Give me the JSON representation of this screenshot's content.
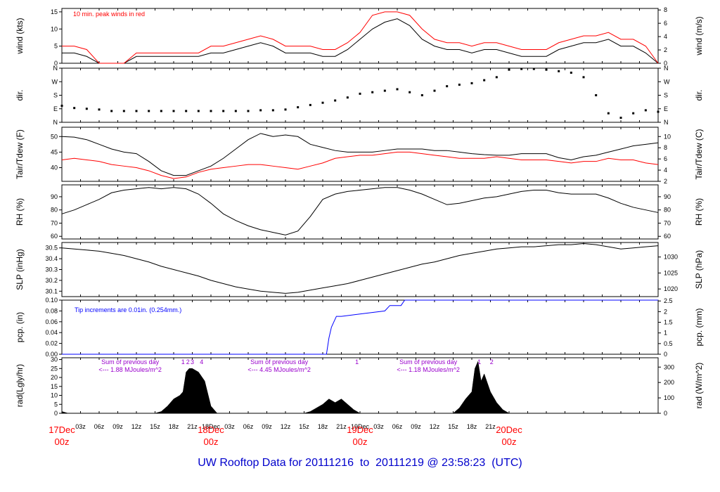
{
  "title": "UW Rooftop Data for 20111216  to  20111219 @ 23:58:23  (UTC)",
  "colors": {
    "axis": "#000000",
    "red": "#ff0000",
    "blue": "#0000ff",
    "purple": "#9900cc",
    "day_label": "#ff0000"
  },
  "x_axis": {
    "hour_ticks": [
      "03z",
      "06z",
      "09z",
      "12z",
      "15z",
      "18z",
      "21z",
      "18Dec",
      "03z",
      "06z",
      "09z",
      "12z",
      "15z",
      "18z",
      "21z",
      "19Dec",
      "03z",
      "06z",
      "09z",
      "12z",
      "15z",
      "18z",
      "21z"
    ],
    "major_labels": [
      {
        "date": "17Dec",
        "time": "00z"
      },
      {
        "date": "18Dec",
        "time": "00z"
      },
      {
        "date": "19Dec",
        "time": "00z"
      },
      {
        "date": "20Dec",
        "time": "00z"
      }
    ]
  },
  "chart_data": [
    {
      "id": "wind",
      "type": "line",
      "ylabel_left": "wind (kts)",
      "ylabel_right": "wind (m/s)",
      "left_ticks": [
        "0",
        "5",
        "10",
        "15"
      ],
      "right_ticks": [
        "0",
        "2",
        "4",
        "6",
        "8"
      ],
      "ylim": [
        0,
        16
      ],
      "annotation": "10 min. peak winds in red",
      "series": [
        {
          "name": "wind speed",
          "color": "#000000",
          "x": [
            0,
            2,
            4,
            6,
            8,
            10,
            12,
            14,
            16,
            18,
            20,
            22,
            24,
            26,
            28,
            30,
            32,
            34,
            36,
            38,
            40,
            42,
            44,
            46,
            48,
            50,
            52,
            54,
            56,
            58,
            60,
            62,
            64,
            66,
            68,
            70,
            72,
            74,
            76,
            78,
            80,
            82,
            84,
            86,
            88,
            90,
            92,
            94,
            96
          ],
          "values": [
            3,
            3,
            2,
            0,
            0,
            0,
            2,
            2,
            2,
            2,
            2,
            2,
            3,
            3,
            4,
            5,
            6,
            5,
            3,
            3,
            3,
            2,
            2,
            4,
            7,
            10,
            12,
            13,
            11,
            7,
            5,
            4,
            4,
            3,
            4,
            4,
            3,
            2,
            2,
            2,
            4,
            5,
            6,
            6,
            7,
            5,
            5,
            3,
            0
          ]
        },
        {
          "name": "10 min. peak",
          "color": "#ff0000",
          "x": [
            0,
            2,
            4,
            6,
            8,
            10,
            12,
            14,
            16,
            18,
            20,
            22,
            24,
            26,
            28,
            30,
            32,
            34,
            36,
            38,
            40,
            42,
            44,
            46,
            48,
            50,
            52,
            54,
            56,
            58,
            60,
            62,
            64,
            66,
            68,
            70,
            72,
            74,
            76,
            78,
            80,
            82,
            84,
            86,
            88,
            90,
            92,
            94,
            96
          ],
          "values": [
            5,
            5,
            4,
            0,
            0,
            0,
            3,
            3,
            3,
            3,
            3,
            3,
            5,
            5,
            6,
            7,
            8,
            7,
            5,
            5,
            5,
            4,
            4,
            6,
            9,
            14,
            15,
            15,
            14,
            10,
            7,
            6,
            6,
            5,
            6,
            6,
            5,
            4,
            4,
            4,
            6,
            7,
            8,
            8,
            9,
            7,
            7,
            5,
            0
          ]
        }
      ]
    },
    {
      "id": "dir",
      "type": "scatter",
      "ylabel_left": "dir.",
      "ylabel_right": "dir.",
      "left_ticks": [
        "N",
        "E",
        "S",
        "W",
        "N"
      ],
      "right_ticks": [
        "N",
        "E",
        "S",
        "W",
        "N"
      ],
      "ylim": [
        0,
        360
      ],
      "series": [
        {
          "name": "wind direction",
          "color": "#000000",
          "x": [
            0,
            2,
            4,
            6,
            8,
            10,
            12,
            14,
            16,
            18,
            20,
            22,
            24,
            26,
            28,
            30,
            32,
            34,
            36,
            38,
            40,
            42,
            44,
            46,
            48,
            50,
            52,
            54,
            56,
            58,
            60,
            62,
            64,
            66,
            68,
            70,
            72,
            74,
            76,
            78,
            80,
            82,
            84,
            86,
            88,
            90,
            92,
            94,
            96
          ],
          "values": [
            110,
            95,
            90,
            85,
            75,
            75,
            75,
            75,
            75,
            75,
            75,
            75,
            75,
            75,
            75,
            75,
            80,
            80,
            85,
            100,
            115,
            130,
            145,
            165,
            190,
            200,
            210,
            220,
            200,
            180,
            210,
            240,
            250,
            260,
            280,
            300,
            350,
            355,
            355,
            350,
            340,
            330,
            300,
            180,
            60,
            30,
            60,
            80,
            70
          ]
        }
      ]
    },
    {
      "id": "temp",
      "type": "line",
      "ylabel_left": "Tair/Tdew (F)",
      "ylabel_right": "Tair/Tdew (C)",
      "left_ticks": [
        "40",
        "45",
        "50"
      ],
      "right_ticks": [
        "2",
        "4",
        "6",
        "8",
        "10"
      ],
      "ylim": [
        35.6,
        53
      ],
      "series": [
        {
          "name": "Tair",
          "color": "#000000",
          "x": [
            0,
            2,
            4,
            6,
            8,
            10,
            12,
            14,
            16,
            18,
            20,
            22,
            24,
            26,
            28,
            30,
            32,
            34,
            36,
            38,
            40,
            42,
            44,
            46,
            48,
            50,
            52,
            54,
            56,
            58,
            60,
            62,
            64,
            66,
            68,
            70,
            72,
            74,
            76,
            78,
            80,
            82,
            84,
            86,
            88,
            90,
            92,
            94,
            96
          ],
          "values": [
            50,
            49.8,
            49,
            47.5,
            46,
            45,
            44.5,
            42,
            39,
            37.5,
            37.5,
            39,
            40.5,
            43,
            46,
            49,
            51,
            50,
            50.5,
            50,
            47.5,
            46.5,
            45.5,
            45,
            45,
            45,
            45.5,
            46,
            46,
            46,
            45.5,
            45.5,
            45,
            44.5,
            44.2,
            44,
            44,
            44.5,
            44.5,
            44.5,
            43.2,
            42.5,
            43.5,
            44,
            45,
            46,
            47,
            47.5,
            48
          ]
        },
        {
          "name": "Tdew",
          "color": "#ff0000",
          "x": [
            0,
            2,
            4,
            6,
            8,
            10,
            12,
            14,
            16,
            18,
            20,
            22,
            24,
            26,
            28,
            30,
            32,
            34,
            36,
            38,
            40,
            42,
            44,
            46,
            48,
            50,
            52,
            54,
            56,
            58,
            60,
            62,
            64,
            66,
            68,
            70,
            72,
            74,
            76,
            78,
            80,
            82,
            84,
            86,
            88,
            90,
            92,
            94,
            96
          ],
          "values": [
            42.5,
            43,
            42.5,
            42,
            41,
            40.5,
            40,
            39,
            37.5,
            36.5,
            37,
            38.5,
            39.5,
            40,
            40.5,
            41,
            41,
            40.5,
            40,
            39.5,
            40.5,
            41.5,
            43,
            43.5,
            44,
            44,
            44.5,
            45,
            45,
            44.5,
            44,
            43.5,
            43,
            43,
            43,
            43.5,
            43,
            42.5,
            42.5,
            42.5,
            42,
            41.5,
            42,
            42,
            43,
            42.5,
            42.5,
            41.5,
            41
          ]
        }
      ]
    },
    {
      "id": "rh",
      "type": "line",
      "ylabel_left": "RH (%)",
      "ylabel_right": "RH (%)",
      "left_ticks": [
        "60",
        "70",
        "80",
        "90"
      ],
      "right_ticks": [
        "60",
        "70",
        "80",
        "90"
      ],
      "ylim": [
        58,
        99
      ],
      "series": [
        {
          "name": "RH",
          "color": "#000000",
          "x": [
            0,
            2,
            4,
            6,
            8,
            10,
            12,
            14,
            16,
            18,
            20,
            22,
            24,
            26,
            28,
            30,
            32,
            34,
            36,
            38,
            40,
            42,
            44,
            46,
            48,
            50,
            52,
            54,
            56,
            58,
            60,
            62,
            64,
            66,
            68,
            70,
            72,
            74,
            76,
            78,
            80,
            82,
            84,
            86,
            88,
            90,
            92,
            94,
            96
          ],
          "values": [
            77,
            80,
            84,
            88,
            93,
            95,
            96,
            97,
            96,
            97,
            96,
            92,
            85,
            77,
            72,
            68,
            65,
            63,
            61,
            64,
            75,
            88,
            92,
            94,
            95,
            96,
            97,
            97,
            95,
            92,
            88,
            84,
            85,
            87,
            89,
            90,
            92,
            94,
            95,
            95,
            93,
            92,
            92,
            92,
            89,
            85,
            82,
            80,
            78
          ]
        }
      ]
    },
    {
      "id": "slp",
      "type": "line",
      "ylabel_left": "SLP (inHg)",
      "ylabel_right": "SLP (hPa)",
      "left_ticks": [
        "30.1",
        "30.2",
        "30.3",
        "30.4",
        "30.5"
      ],
      "right_ticks": [
        "1020",
        "1025",
        "1030"
      ],
      "ylim": [
        30.05,
        30.55
      ],
      "series": [
        {
          "name": "SLP",
          "color": "#000000",
          "x": [
            0,
            2,
            4,
            6,
            8,
            10,
            12,
            14,
            16,
            18,
            20,
            22,
            24,
            26,
            28,
            30,
            32,
            34,
            36,
            38,
            40,
            42,
            44,
            46,
            48,
            50,
            52,
            54,
            56,
            58,
            60,
            62,
            64,
            66,
            68,
            70,
            72,
            74,
            76,
            78,
            80,
            82,
            84,
            86,
            88,
            90,
            92,
            94,
            96
          ],
          "values": [
            30.5,
            30.49,
            30.48,
            30.47,
            30.45,
            30.43,
            30.4,
            30.37,
            30.33,
            30.3,
            30.27,
            30.24,
            30.2,
            30.17,
            30.14,
            30.12,
            30.1,
            30.09,
            30.08,
            30.09,
            30.11,
            30.13,
            30.15,
            30.17,
            30.2,
            30.23,
            30.26,
            30.29,
            30.32,
            30.35,
            30.37,
            30.4,
            30.43,
            30.45,
            30.47,
            30.49,
            30.5,
            30.51,
            30.51,
            30.52,
            30.53,
            30.53,
            30.54,
            30.53,
            30.51,
            30.49,
            30.5,
            30.51,
            30.52
          ]
        }
      ]
    },
    {
      "id": "pcp",
      "type": "line",
      "ylabel_left": "pcp. (in)",
      "ylabel_right": "pcp. (mm)",
      "left_ticks": [
        "0.00",
        "0.02",
        "0.04",
        "0.06",
        "0.08",
        "0.10"
      ],
      "right_ticks": [
        "0",
        "0.5",
        "1",
        "1.5",
        "2",
        "2.5"
      ],
      "ylim": [
        0,
        0.1
      ],
      "annotation": "Tip increments are 0.01in. (0.254mm.)",
      "series": [
        {
          "name": "cumulative precip",
          "color": "#0000ff",
          "x": [
            0,
            42.6,
            43,
            43.4,
            43.8,
            44.2,
            44.6,
            45,
            52,
            52.8,
            54.6,
            55.2,
            96
          ],
          "values": [
            0,
            0,
            0.03,
            0.05,
            0.06,
            0.07,
            0.07,
            0.07,
            0.08,
            0.09,
            0.09,
            0.1,
            0.1
          ]
        }
      ]
    },
    {
      "id": "rad",
      "type": "area",
      "ylabel_left": "rad(Lgly/hr)",
      "ylabel_right": "rad (W/m^2)",
      "left_ticks": [
        "0",
        "5",
        "10",
        "15",
        "20",
        "25",
        "30"
      ],
      "right_ticks": [
        "0",
        "100",
        "200",
        "300"
      ],
      "ylim": [
        0,
        31
      ],
      "series": [
        {
          "name": "solar radiation",
          "color": "#000000",
          "x": [
            0,
            0.5,
            1,
            2,
            15,
            16,
            17,
            18,
            19,
            19.5,
            20,
            20.5,
            21,
            22,
            23,
            24,
            25,
            39,
            40,
            41,
            42,
            43,
            44,
            45,
            46,
            47,
            48,
            49,
            63,
            64,
            65,
            66,
            66.5,
            67,
            67.5,
            68,
            69,
            70,
            71,
            72,
            96
          ],
          "values": [
            1,
            0.5,
            0,
            0,
            0,
            1,
            4,
            8,
            10,
            12,
            23,
            25,
            25,
            23,
            18,
            4,
            0,
            0,
            1,
            3,
            5,
            8,
            6,
            8,
            5,
            2,
            0,
            0,
            0,
            3,
            8,
            12,
            25,
            29,
            18,
            22,
            12,
            6,
            2,
            0,
            0
          ]
        }
      ],
      "annotations": [
        {
          "x": 11,
          "line1": "Sum of previous day",
          "line2": "<--- 1.88 MJoules/m^2"
        },
        {
          "x": 35,
          "line1": "Sum of previous day",
          "line2": "<--- 4.45 MJoules/m^2"
        },
        {
          "x": 59,
          "line1": "Sum of previous day",
          "line2": "<--- 1.18 MJoules/m^2"
        }
      ],
      "marks": [
        {
          "x": 19.5,
          "label": "1"
        },
        {
          "x": 20.3,
          "label": "2"
        },
        {
          "x": 21,
          "label": "3"
        },
        {
          "x": 22.5,
          "label": "4"
        },
        {
          "x": 47.5,
          "label": "1"
        },
        {
          "x": 67.2,
          "label": "1"
        },
        {
          "x": 69.2,
          "label": "2"
        }
      ]
    }
  ]
}
